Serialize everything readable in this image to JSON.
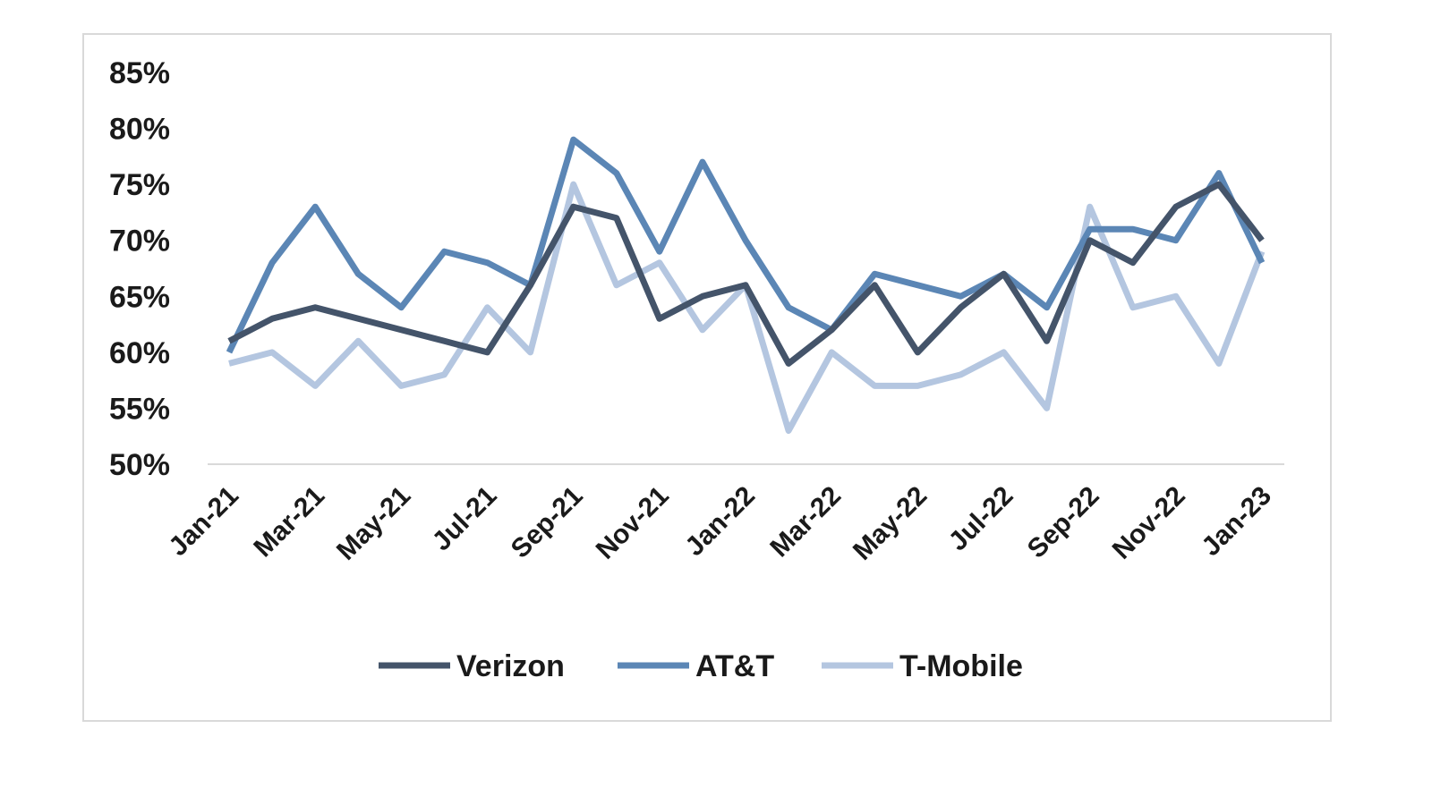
{
  "chart_data": {
    "type": "line",
    "title": "",
    "xlabel": "",
    "ylabel": "",
    "ylim": [
      50,
      85
    ],
    "yticks": [
      "50%",
      "55%",
      "60%",
      "65%",
      "70%",
      "75%",
      "80%",
      "85%"
    ],
    "ytick_values": [
      50,
      55,
      60,
      65,
      70,
      75,
      80,
      85
    ],
    "x": [
      "Jan-21",
      "Feb-21",
      "Mar-21",
      "Apr-21",
      "May-21",
      "Jun-21",
      "Jul-21",
      "Aug-21",
      "Sep-21",
      "Oct-21",
      "Nov-21",
      "Dec-21",
      "Jan-22",
      "Feb-22",
      "Mar-22",
      "Apr-22",
      "May-22",
      "Jun-22",
      "Jul-22",
      "Aug-22",
      "Sep-22",
      "Oct-22",
      "Nov-22",
      "Dec-22",
      "Jan-23"
    ],
    "xtick_labels": [
      "Jan-21",
      "Mar-21",
      "May-21",
      "Jul-21",
      "Sep-21",
      "Nov-21",
      "Jan-22",
      "Mar-22",
      "May-22",
      "Jul-22",
      "Sep-22",
      "Nov-22",
      "Jan-23"
    ],
    "grid": false,
    "legend_position": "bottom",
    "series": [
      {
        "name": "Verizon",
        "color": "#44546a",
        "values": [
          61,
          63,
          64,
          63,
          62,
          61,
          60,
          66,
          73,
          72,
          63,
          65,
          66,
          59,
          62,
          66,
          60,
          64,
          67,
          61,
          70,
          68,
          73,
          75,
          70
        ]
      },
      {
        "name": "AT&T",
        "color": "#5b86b5",
        "values": [
          60,
          68,
          73,
          67,
          64,
          69,
          68,
          66,
          79,
          76,
          69,
          77,
          70,
          64,
          62,
          67,
          66,
          65,
          67,
          64,
          71,
          71,
          70,
          76,
          68
        ]
      },
      {
        "name": "T-Mobile",
        "color": "#b4c6e0",
        "values": [
          59,
          60,
          57,
          61,
          57,
          58,
          64,
          60,
          75,
          66,
          68,
          62,
          66,
          53,
          60,
          57,
          57,
          58,
          60,
          55,
          73,
          64,
          65,
          59,
          69
        ]
      }
    ]
  }
}
